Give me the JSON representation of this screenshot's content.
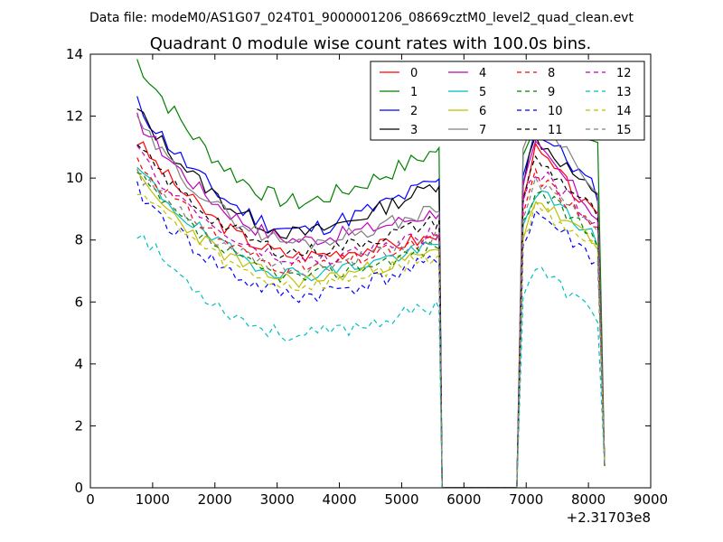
{
  "figure": {
    "suptitle": "Data file: modeM0/AS1G07_024T01_9000001206_08669cztM0_level2_quad_clean.evt"
  },
  "chart_data": {
    "type": "line",
    "title": "Quadrant 0 module wise count rates with 100.0s bins.",
    "xlabel": "",
    "ylabel": "",
    "x_offset_label": "+2.31703e8",
    "xlim": [
      0,
      9000
    ],
    "ylim": [
      0,
      14
    ],
    "x_ticks": [
      0,
      1000,
      2000,
      3000,
      4000,
      5000,
      6000,
      7000,
      8000,
      9000
    ],
    "y_ticks": [
      0,
      2,
      4,
      6,
      8,
      10,
      12,
      14
    ],
    "grid": false,
    "legend_position": "top-right",
    "legend_columns": 4,
    "gap_start": 5700,
    "gap_end": 6800,
    "series": [
      {
        "name": "0",
        "color": "#ff0000",
        "dashed": false,
        "first": 11.2,
        "min": 7.5,
        "last1": 8.1,
        "peak": 10.9,
        "last2": 8.5,
        "jitter": 0.25,
        "seed": 3
      },
      {
        "name": "1",
        "color": "#008000",
        "dashed": false,
        "first": 13.8,
        "min": 9.2,
        "last1": 10.9,
        "peak": 12.1,
        "last2": 11.1,
        "jitter": 0.3,
        "seed": 7
      },
      {
        "name": "2",
        "color": "#0000ff",
        "dashed": false,
        "first": 12.4,
        "min": 8.3,
        "last1": 9.9,
        "peak": 11.6,
        "last2": 9.4,
        "jitter": 0.3,
        "seed": 11
      },
      {
        "name": "3",
        "color": "#000000",
        "dashed": false,
        "first": 12.2,
        "min": 8.2,
        "last1": 9.8,
        "peak": 11.3,
        "last2": 9.2,
        "jitter": 0.25,
        "seed": 13
      },
      {
        "name": "4",
        "color": "#bf00bf",
        "dashed": false,
        "first": 11.9,
        "min": 8.0,
        "last1": 8.9,
        "peak": 11.0,
        "last2": 8.6,
        "jitter": 0.25,
        "seed": 17
      },
      {
        "name": "5",
        "color": "#00bfbf",
        "dashed": false,
        "first": 10.3,
        "min": 6.9,
        "last1": 7.8,
        "peak": 9.6,
        "last2": 7.9,
        "jitter": 0.25,
        "seed": 19
      },
      {
        "name": "6",
        "color": "#bfbf00",
        "dashed": false,
        "first": 10.0,
        "min": 6.7,
        "last1": 7.6,
        "peak": 9.3,
        "last2": 7.7,
        "jitter": 0.25,
        "seed": 23
      },
      {
        "name": "7",
        "color": "#808080",
        "dashed": false,
        "first": 11.8,
        "min": 7.9,
        "last1": 9.0,
        "peak": 12.4,
        "last2": 9.1,
        "jitter": 0.25,
        "seed": 29
      },
      {
        "name": "8",
        "color": "#ff0000",
        "dashed": true,
        "first": 10.6,
        "min": 7.1,
        "last1": 8.0,
        "peak": 10.1,
        "last2": 8.2,
        "jitter": 0.25,
        "seed": 31
      },
      {
        "name": "9",
        "color": "#008000",
        "dashed": true,
        "first": 10.1,
        "min": 6.8,
        "last1": 7.8,
        "peak": 9.6,
        "last2": 7.9,
        "jitter": 0.25,
        "seed": 37
      },
      {
        "name": "10",
        "color": "#0000ff",
        "dashed": true,
        "first": 9.6,
        "min": 6.2,
        "last1": 7.3,
        "peak": 8.9,
        "last2": 7.2,
        "jitter": 0.3,
        "seed": 41
      },
      {
        "name": "11",
        "color": "#000000",
        "dashed": true,
        "first": 11.0,
        "min": 7.6,
        "last1": 8.6,
        "peak": 10.6,
        "last2": 8.7,
        "jitter": 0.25,
        "seed": 43
      },
      {
        "name": "12",
        "color": "#bf00bf",
        "dashed": true,
        "first": 10.8,
        "min": 7.3,
        "last1": 8.2,
        "peak": 10.3,
        "last2": 8.3,
        "jitter": 0.25,
        "seed": 47
      },
      {
        "name": "13",
        "color": "#00bfbf",
        "dashed": true,
        "first": 8.3,
        "min": 4.9,
        "last1": 5.9,
        "peak": 7.1,
        "last2": 5.4,
        "jitter": 0.25,
        "seed": 53
      },
      {
        "name": "14",
        "color": "#bfbf00",
        "dashed": true,
        "first": 9.7,
        "min": 6.5,
        "last1": 7.5,
        "peak": 9.1,
        "last2": 7.6,
        "jitter": 0.25,
        "seed": 59
      },
      {
        "name": "15",
        "color": "#808080",
        "dashed": true,
        "first": 10.2,
        "min": 7.0,
        "last1": 8.1,
        "peak": 9.8,
        "last2": 8.3,
        "jitter": 0.25,
        "seed": 61
      }
    ]
  }
}
